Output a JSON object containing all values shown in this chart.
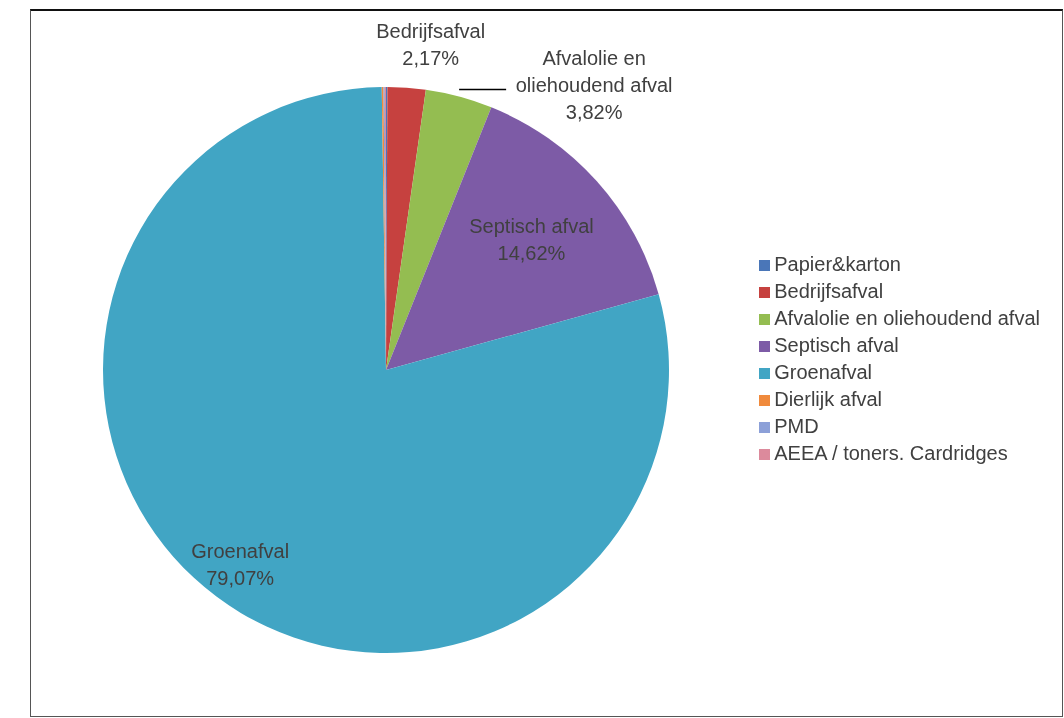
{
  "chart_data": {
    "type": "pie",
    "categories": [
      "Papier&karton",
      "Bedrijfsafval",
      "Afvalolie en oliehoudend afval",
      "Septisch afval",
      "Groenafval",
      "Dierlijk afval",
      "PMD",
      "AEEA / toners. Cardridges"
    ],
    "values": [
      0.08,
      2.17,
      3.82,
      14.62,
      79.07,
      0.1,
      0.07,
      0.07
    ],
    "colors": [
      "#4a76b8",
      "#c6413f",
      "#94bd51",
      "#7d5ba6",
      "#41a5c4",
      "#f08a3c",
      "#8ca0d8",
      "#dc8a9c"
    ],
    "value_labels": [
      null,
      "2,17%",
      "3,82%",
      "14,62%",
      "79,07%",
      null,
      null,
      null
    ],
    "legend": "right"
  }
}
